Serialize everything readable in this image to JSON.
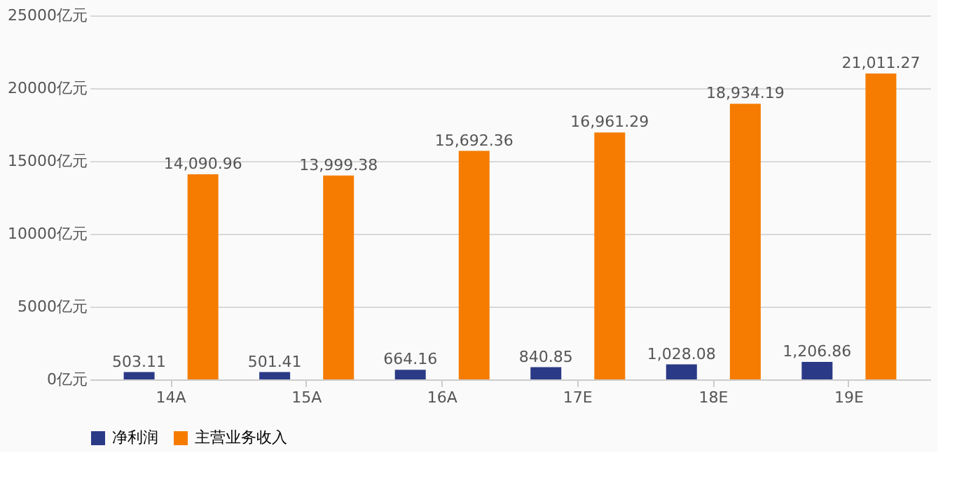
{
  "chart_data": {
    "type": "bar",
    "categories": [
      "14A",
      "15A",
      "16A",
      "17E",
      "18E",
      "19E"
    ],
    "series": [
      {
        "name": "净利润",
        "color": "#2b3a86",
        "values": [
          503.11,
          501.41,
          664.16,
          840.85,
          1028.08,
          1206.86
        ],
        "value_labels": [
          "503.11",
          "501.41",
          "664.16",
          "840.85",
          "1,028.08",
          "1,206.86"
        ]
      },
      {
        "name": "主营业务收入",
        "color": "#f57c00",
        "values": [
          14090.96,
          13999.38,
          15692.36,
          16961.29,
          18934.19,
          21011.27
        ],
        "value_labels": [
          "14,090.96",
          "13,999.38",
          "15,692.36",
          "16,961.29",
          "18,934.19",
          "21,011.27"
        ]
      }
    ],
    "ylim": [
      0,
      25000
    ],
    "yticks": [
      {
        "value": 0,
        "label": "0亿元"
      },
      {
        "value": 5000,
        "label": "5000亿元"
      },
      {
        "value": 10000,
        "label": "10000亿元"
      },
      {
        "value": 15000,
        "label": "15000亿元"
      },
      {
        "value": 20000,
        "label": "20000亿元"
      },
      {
        "value": 25000,
        "label": "25000亿元"
      }
    ],
    "grid": "y",
    "legend": "bottom"
  }
}
